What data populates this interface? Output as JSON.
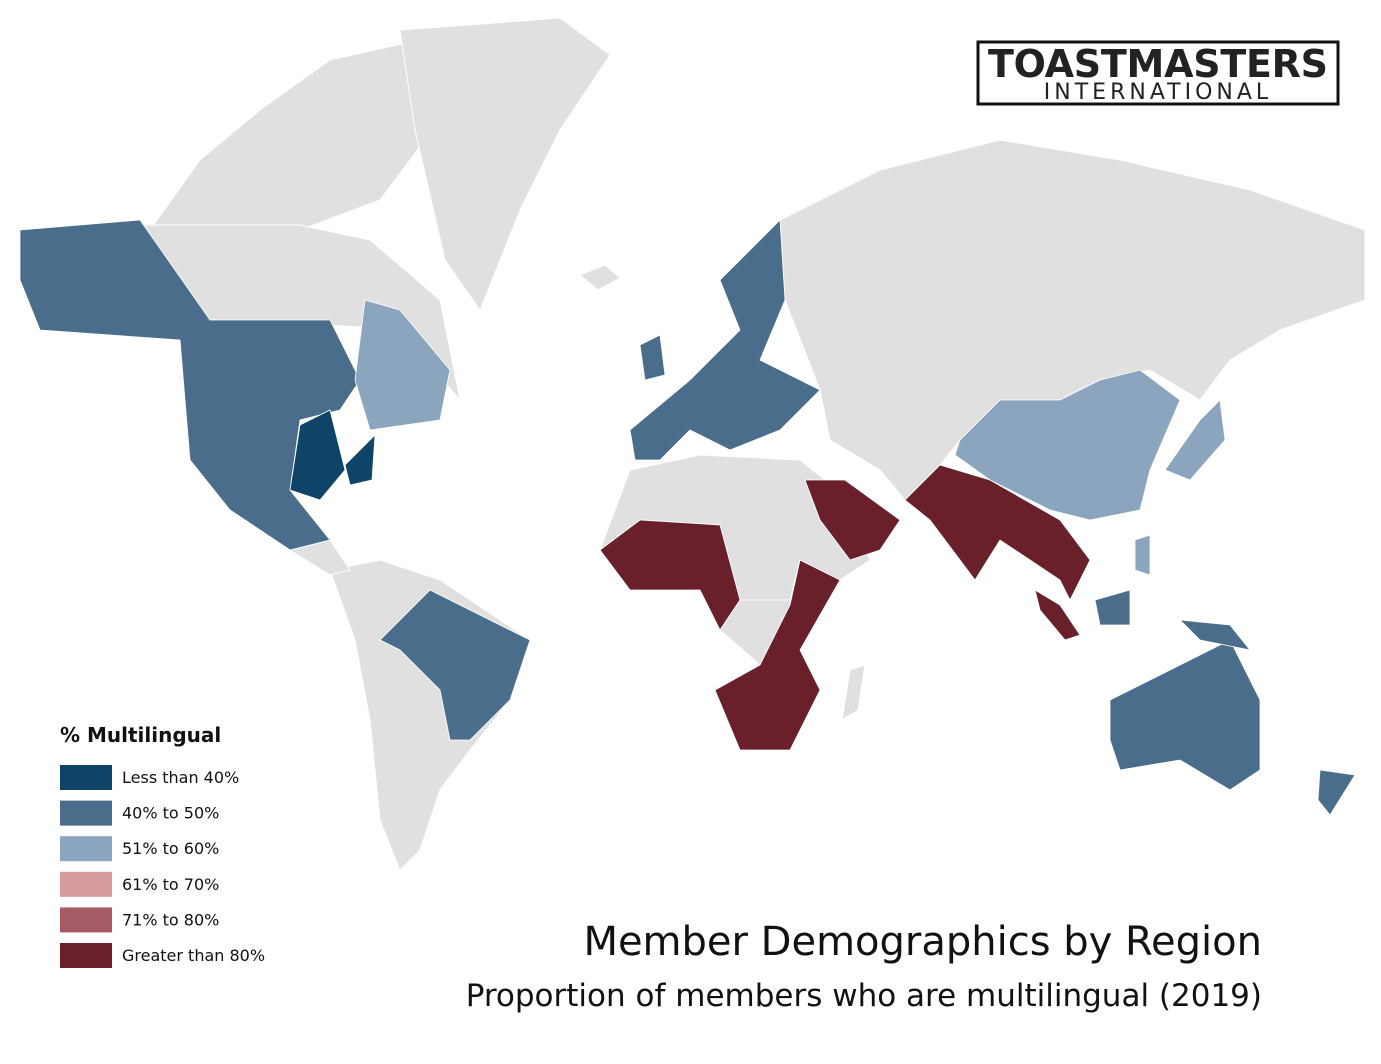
{
  "logo": {
    "name": "TOASTMASTERS",
    "sub": "INTERNATIONAL"
  },
  "title": "Member Demographics by Region",
  "subtitle": "Proportion of members who are multilingual (2019)",
  "legend": {
    "title": "% Multilingual",
    "items": [
      {
        "label": "Less than 40%",
        "color": "#0d4468"
      },
      {
        "label": "40% to 50%",
        "color": "#4a6d8c"
      },
      {
        "label": "51% to 60%",
        "color": "#8aa5bd"
      },
      {
        "label": "61% to 70%",
        "color": "#d69a9d"
      },
      {
        "label": "71% to 80%",
        "color": "#a65b66"
      },
      {
        "label": "Greater than 80%",
        "color": "#69202b"
      }
    ]
  }
}
